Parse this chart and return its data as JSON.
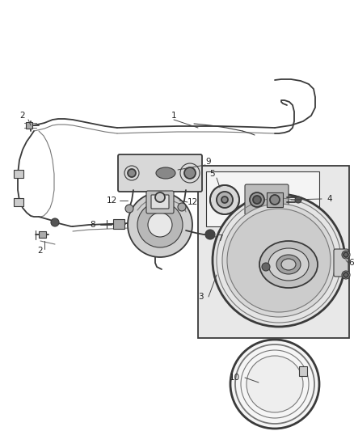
{
  "bg_color": "#ffffff",
  "fig_width": 4.38,
  "fig_height": 5.33,
  "dpi": 100,
  "line_color": "#3a3a3a",
  "label_fontsize": 7.5,
  "label_color": "#222222"
}
